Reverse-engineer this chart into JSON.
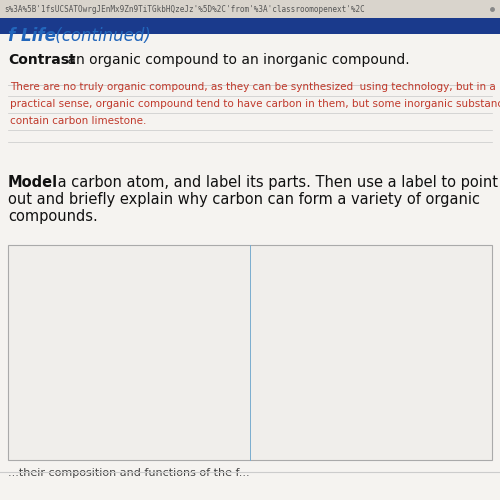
{
  "bg_color": "#ede9e4",
  "page_bg": "#f5f3f0",
  "url_bar_color": "#d9d4cc",
  "url_text": "s%3A%5B'1fsUCSATOwrgJEnMx9Zn9TiTGkbHQzeJz'%5D%2C'from'%3A'classroomopenext'%2C",
  "url_text_color": "#555555",
  "blue_bar_color": "#1a3a8c",
  "title_blue": "#2266bb",
  "title_bold": "f Life",
  "title_normal": " (continued)",
  "contrast_bold": "Contrast",
  "contrast_normal": " an organic compound to an inorganic compound.",
  "red_lines": [
    "There are no truly organic compound, as they can be synthesized  using technology, but in a",
    "practical sense, organic compound tend to have carbon in them, but some inorganic substances",
    "contain carbon limestone."
  ],
  "red_color": "#c0392b",
  "underline_color": "#c8c8c8",
  "model_bold": "Model",
  "model_line1": " a carbon atom, and label its parts. Then use a label to point",
  "model_line2": "out and briefly explain why carbon can form a variety of organic",
  "model_line3": "compounds.",
  "box_border_color": "#aaaaaa",
  "box_fill": "#f0eeeb",
  "divider_color": "#7aaccf",
  "bottom_text": "...their composition and functions of the f...",
  "bottom_text_color": "#444444",
  "small_dot_color": "#888888"
}
